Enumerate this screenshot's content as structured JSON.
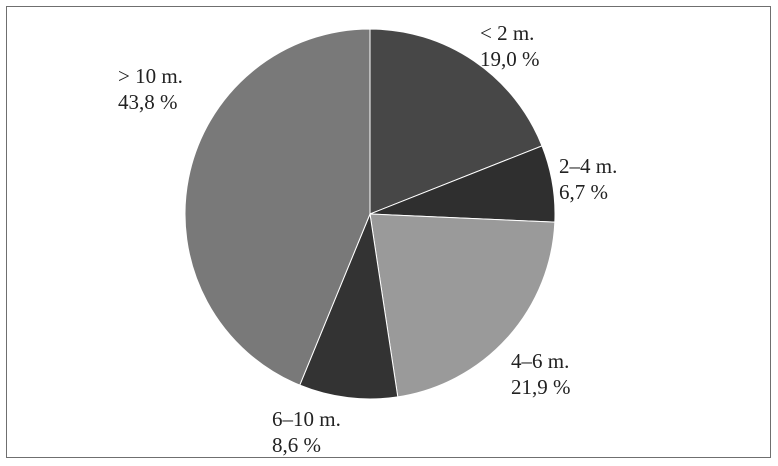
{
  "chart_data": {
    "type": "pie",
    "title": "",
    "start_angle_deg": 0,
    "direction": "clockwise",
    "legend": "none",
    "slices": [
      {
        "label": "< 2 m.",
        "value_text": "19,0 %",
        "value": 19.0,
        "color": "#474747"
      },
      {
        "label": "2–4 m.",
        "value_text": "6,7 %",
        "value": 6.7,
        "color": "#2f2f2f"
      },
      {
        "label": "4–6 m.",
        "value_text": "21,9 %",
        "value": 21.9,
        "color": "#9a9a9a"
      },
      {
        "label": "6–10 m.",
        "value_text": "8,6 %",
        "value": 8.6,
        "color": "#333333"
      },
      {
        "label": "> 10 m.",
        "value_text": "43,8 %",
        "value": 43.8,
        "color": "#797979"
      }
    ]
  }
}
